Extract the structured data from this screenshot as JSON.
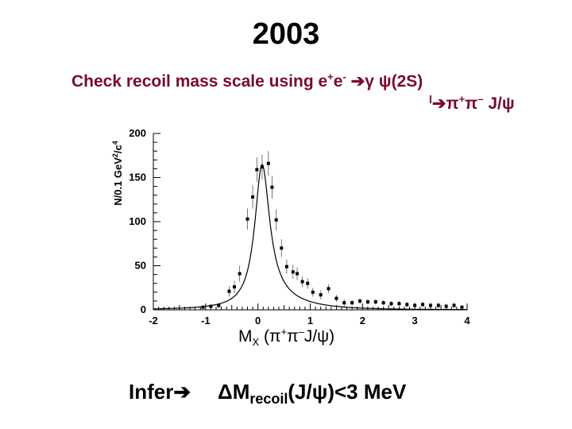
{
  "slide": {
    "title": "2003",
    "subtitle_prefix": "Check recoil mass scale using e",
    "subtitle_sup1": "+",
    "subtitle_mid": "e",
    "subtitle_sup2": "-",
    "subtitle_arrow": "➔",
    "subtitle_tail": "γ ψ(2S)",
    "decay_bar": "l",
    "decay_arrow": "➔",
    "decay_pi": "π",
    "decay_sup1": "+",
    "decay_pi2": "π",
    "decay_sup2": "–",
    "decay_tail": " J/ψ",
    "infer_label": "Infer",
    "infer_arrow": "➔",
    "result_delta": "ΔM",
    "result_sub": "recoil",
    "result_tail": "(J/ψ)<3 MeV"
  },
  "chart_data": {
    "type": "scatter",
    "title": "",
    "xlabel_main": "M",
    "xlabel_sub": "X",
    "xlabel_rest_a": " (π",
    "xlabel_sup1": "+",
    "xlabel_rest_b": "π",
    "xlabel_sup2": "–",
    "xlabel_rest_c": "J/ψ)",
    "ylabel_text": "N/0.1 GeV",
    "ylabel_sup1": "2",
    "ylabel_mid": "/c",
    "ylabel_sup2": "4",
    "xlim": [
      -2,
      4
    ],
    "ylim": [
      0,
      200
    ],
    "x_ticks": [
      -2,
      -1,
      0,
      1,
      2,
      3,
      4
    ],
    "x_tick_labels": [
      "-2",
      "-1",
      "0",
      "1",
      "2",
      "3",
      "4"
    ],
    "y_ticks": [
      0,
      50,
      100,
      150,
      200
    ],
    "y_tick_labels": [
      "0",
      "50",
      "100",
      "150",
      "200"
    ],
    "points": [
      {
        "x": -1.05,
        "y": 3,
        "err": 2
      },
      {
        "x": -0.9,
        "y": 4,
        "err": 2
      },
      {
        "x": -0.75,
        "y": 5,
        "err": 3
      },
      {
        "x": -0.55,
        "y": 21,
        "err": 6
      },
      {
        "x": -0.45,
        "y": 26,
        "err": 7
      },
      {
        "x": -0.35,
        "y": 41,
        "err": 9
      },
      {
        "x": -0.2,
        "y": 103,
        "err": 12
      },
      {
        "x": -0.1,
        "y": 128,
        "err": 13
      },
      {
        "x": -0.02,
        "y": 159,
        "err": 14
      },
      {
        "x": 0.08,
        "y": 162,
        "err": 14
      },
      {
        "x": 0.2,
        "y": 166,
        "err": 14
      },
      {
        "x": 0.27,
        "y": 139,
        "err": 13
      },
      {
        "x": 0.35,
        "y": 102,
        "err": 12
      },
      {
        "x": 0.45,
        "y": 70,
        "err": 10
      },
      {
        "x": 0.55,
        "y": 49,
        "err": 8
      },
      {
        "x": 0.67,
        "y": 43,
        "err": 8
      },
      {
        "x": 0.75,
        "y": 41,
        "err": 7
      },
      {
        "x": 0.85,
        "y": 32,
        "err": 6
      },
      {
        "x": 0.95,
        "y": 30,
        "err": 6
      },
      {
        "x": 1.05,
        "y": 20,
        "err": 5
      },
      {
        "x": 1.2,
        "y": 17,
        "err": 5
      },
      {
        "x": 1.35,
        "y": 24,
        "err": 5
      },
      {
        "x": 1.5,
        "y": 13,
        "err": 4
      },
      {
        "x": 1.65,
        "y": 8,
        "err": 4
      },
      {
        "x": 1.8,
        "y": 8,
        "err": 3
      },
      {
        "x": 1.95,
        "y": 10,
        "err": 3
      },
      {
        "x": 2.1,
        "y": 9,
        "err": 3
      },
      {
        "x": 2.25,
        "y": 9,
        "err": 3
      },
      {
        "x": 2.4,
        "y": 8,
        "err": 3
      },
      {
        "x": 2.55,
        "y": 7,
        "err": 3
      },
      {
        "x": 2.7,
        "y": 7,
        "err": 3
      },
      {
        "x": 2.85,
        "y": 6,
        "err": 3
      },
      {
        "x": 3.0,
        "y": 5,
        "err": 3
      },
      {
        "x": 3.15,
        "y": 6,
        "err": 3
      },
      {
        "x": 3.3,
        "y": 5,
        "err": 3
      },
      {
        "x": 3.45,
        "y": 5,
        "err": 3
      },
      {
        "x": 3.6,
        "y": 4,
        "err": 3
      },
      {
        "x": 3.75,
        "y": 5,
        "err": 3
      },
      {
        "x": 3.9,
        "y": 3,
        "err": 2
      }
    ],
    "fit_curve": {
      "peak_x": 0.08,
      "peak_y": 165,
      "width": 0.17,
      "tail_amp": 22,
      "tail_decay": 0.55
    },
    "grid": false,
    "colors": {
      "points": "#000000",
      "curve": "#000000",
      "axis": "#000000"
    }
  }
}
